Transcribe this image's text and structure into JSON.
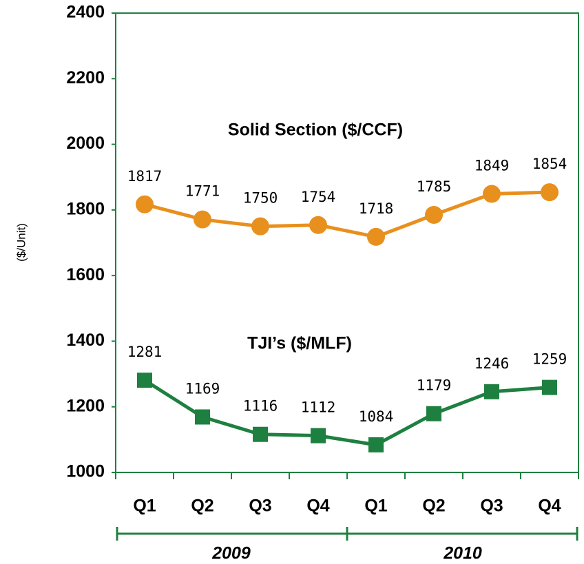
{
  "chart_data": {
    "type": "line",
    "ylabel": "($/Unit)",
    "categories": [
      "Q1",
      "Q2",
      "Q3",
      "Q4",
      "Q1",
      "Q2",
      "Q3",
      "Q4"
    ],
    "category_groups": [
      "2009",
      "2010"
    ],
    "series": [
      {
        "name": "Solid Section ($/CCF)",
        "color": "#e8901e",
        "marker": "circle",
        "values": [
          1817,
          1771,
          1750,
          1754,
          1718,
          1785,
          1849,
          1854
        ]
      },
      {
        "name": "TJI’s ($/MLF)",
        "color": "#1e8040",
        "marker": "square",
        "values": [
          1281,
          1169,
          1116,
          1112,
          1084,
          1179,
          1246,
          1259
        ]
      }
    ],
    "ylim": [
      1000,
      2400
    ],
    "yticks": [
      1000,
      1200,
      1400,
      1600,
      1800,
      2000,
      2200,
      2400
    ],
    "axis_color": "#1e8040",
    "grid": false
  }
}
